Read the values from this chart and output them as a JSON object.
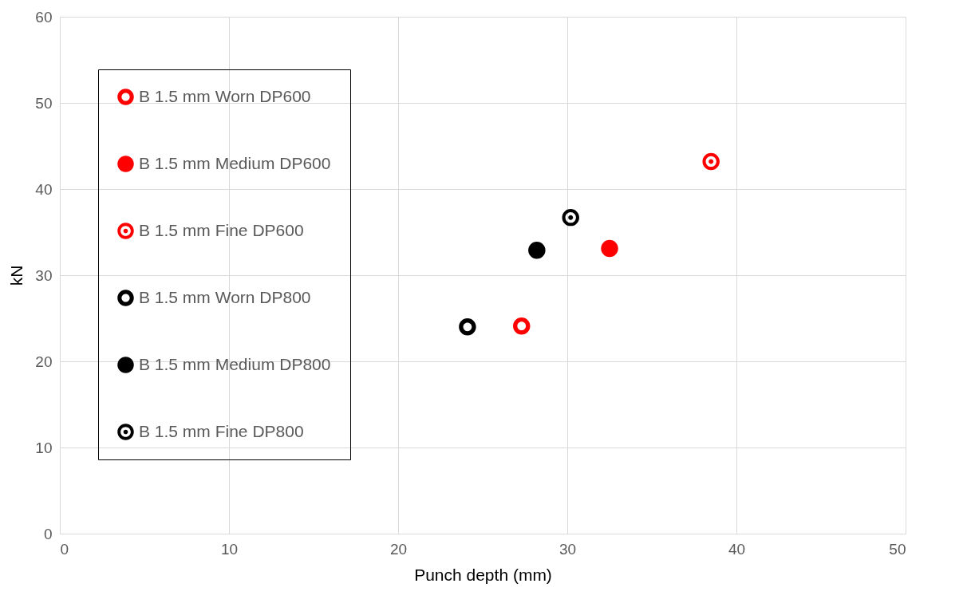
{
  "chart_data": {
    "type": "scatter",
    "xlabel": "Punch depth (mm)",
    "ylabel": "kN",
    "xlim": [
      0,
      50
    ],
    "ylim": [
      0,
      60
    ],
    "xticks": [
      0,
      10,
      20,
      30,
      40,
      50
    ],
    "yticks": [
      0,
      10,
      20,
      30,
      40,
      50,
      60
    ],
    "grid": true,
    "legend": "top left",
    "marker": "circle",
    "series": [
      {
        "name": "B 1.5 mm Worn DP600",
        "color": "#ff0000",
        "x": [
          27.3
        ],
        "values": [
          24.1
        ]
      },
      {
        "name": "B 1.5 mm Medium DP600",
        "color": "#ff0000",
        "x": [
          32.5
        ],
        "values": [
          33.1
        ]
      },
      {
        "name": "B 1.5 mm Fine DP600",
        "color": "#ff0000",
        "x": [
          38.5
        ],
        "values": [
          43.2
        ]
      },
      {
        "name": "B 1.5 mm Worn DP800",
        "color": "#000000",
        "x": [
          24.1
        ],
        "values": [
          24.0
        ]
      },
      {
        "name": "B 1.5 mm Medium DP800",
        "color": "#000000",
        "x": [
          28.2
        ],
        "values": [
          32.9
        ]
      },
      {
        "name": "B 1.5 mm Fine DP800",
        "color": "#000000",
        "x": [
          30.2
        ],
        "values": [
          36.7
        ]
      }
    ]
  }
}
